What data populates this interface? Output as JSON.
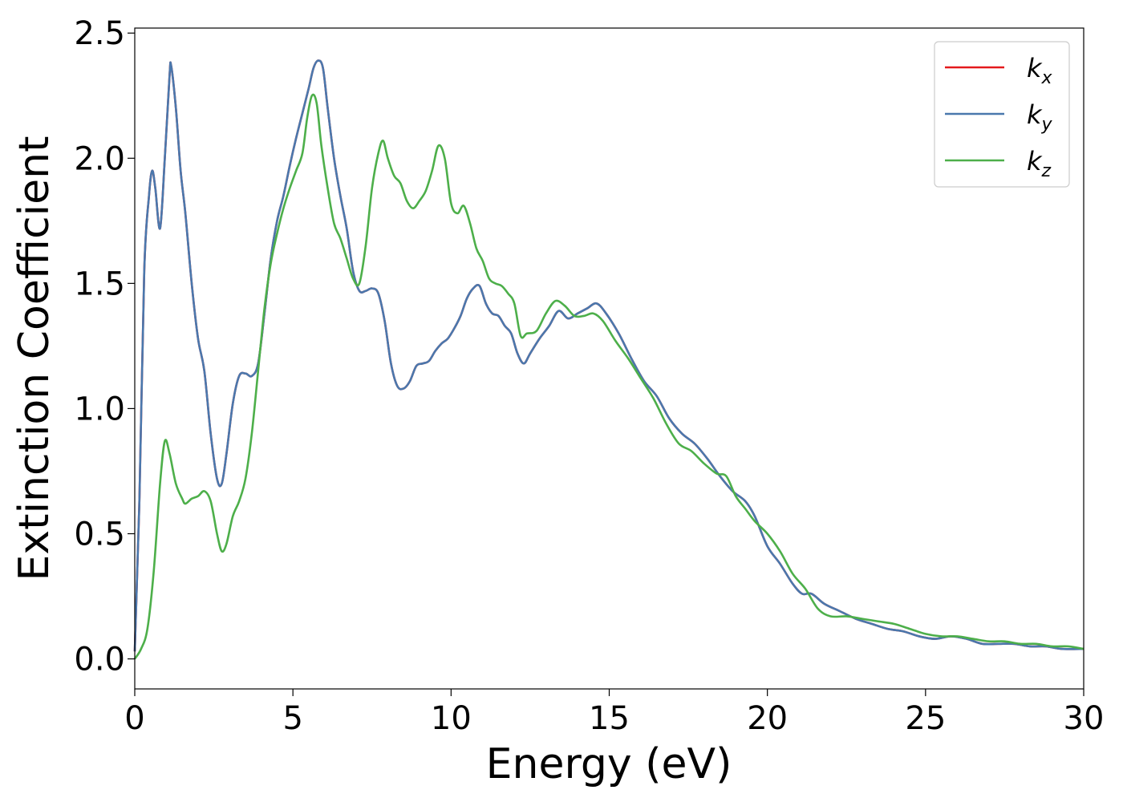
{
  "chart_data": {
    "type": "line",
    "title": "",
    "xlabel": "Energy (eV)",
    "ylabel": "Extinction Coefficient",
    "xlim": [
      0,
      30
    ],
    "ylim": [
      -0.12,
      2.52
    ],
    "xticks": [
      0,
      5,
      10,
      15,
      20,
      25,
      30
    ],
    "yticks": [
      0.0,
      0.5,
      1.0,
      1.5,
      2.0,
      2.5
    ],
    "xtick_labels": [
      "0",
      "5",
      "10",
      "15",
      "20",
      "25",
      "30"
    ],
    "ytick_labels": [
      "0.0",
      "0.5",
      "1.0",
      "1.5",
      "2.0",
      "2.5"
    ],
    "grid": false,
    "legend_position": "top-right",
    "series": [
      {
        "name": "k_x",
        "color": "#e41a1c",
        "x": [
          0.0,
          0.15,
          0.3,
          0.45,
          0.55,
          0.65,
          0.8,
          0.95,
          1.1,
          1.15,
          1.3,
          1.45,
          1.6,
          1.8,
          2.0,
          2.2,
          2.4,
          2.6,
          2.75,
          2.9,
          3.1,
          3.3,
          3.5,
          3.7,
          3.9,
          4.1,
          4.3,
          4.5,
          4.7,
          4.9,
          5.1,
          5.3,
          5.5,
          5.65,
          5.8,
          5.95,
          6.1,
          6.3,
          6.5,
          6.7,
          6.9,
          7.1,
          7.3,
          7.5,
          7.7,
          7.9,
          8.1,
          8.3,
          8.5,
          8.7,
          8.9,
          9.1,
          9.3,
          9.5,
          9.7,
          9.9,
          10.1,
          10.3,
          10.5,
          10.7,
          10.9,
          11.1,
          11.3,
          11.5,
          11.7,
          11.9,
          12.1,
          12.3,
          12.5,
          12.8,
          13.1,
          13.4,
          13.7,
          14.0,
          14.3,
          14.6,
          14.9,
          15.3,
          15.7,
          16.1,
          16.5,
          16.9,
          17.3,
          17.7,
          18.1,
          18.5,
          18.9,
          19.3,
          19.6,
          20.0,
          20.4,
          20.8,
          21.1,
          21.4,
          21.8,
          22.3,
          22.8,
          23.3,
          23.8,
          24.3,
          24.8,
          25.3,
          25.8,
          26.3,
          26.8,
          27.3,
          27.8,
          28.3,
          28.8,
          29.3,
          30.0
        ],
        "y": [
          0.03,
          0.65,
          1.55,
          1.85,
          1.95,
          1.88,
          1.72,
          2.0,
          2.33,
          2.37,
          2.2,
          1.95,
          1.78,
          1.5,
          1.28,
          1.15,
          0.9,
          0.72,
          0.7,
          0.82,
          1.02,
          1.13,
          1.14,
          1.13,
          1.18,
          1.38,
          1.6,
          1.75,
          1.85,
          1.97,
          2.08,
          2.18,
          2.28,
          2.36,
          2.39,
          2.36,
          2.2,
          2.0,
          1.85,
          1.72,
          1.55,
          1.47,
          1.47,
          1.48,
          1.46,
          1.35,
          1.18,
          1.09,
          1.08,
          1.11,
          1.17,
          1.18,
          1.19,
          1.23,
          1.26,
          1.28,
          1.32,
          1.37,
          1.44,
          1.48,
          1.49,
          1.42,
          1.38,
          1.37,
          1.33,
          1.3,
          1.22,
          1.18,
          1.22,
          1.28,
          1.33,
          1.39,
          1.36,
          1.38,
          1.4,
          1.42,
          1.38,
          1.3,
          1.2,
          1.11,
          1.05,
          0.96,
          0.9,
          0.86,
          0.8,
          0.73,
          0.67,
          0.63,
          0.57,
          0.45,
          0.38,
          0.3,
          0.26,
          0.26,
          0.22,
          0.19,
          0.16,
          0.14,
          0.12,
          0.11,
          0.09,
          0.08,
          0.09,
          0.08,
          0.06,
          0.06,
          0.06,
          0.05,
          0.05,
          0.04,
          0.04
        ]
      },
      {
        "name": "k_y",
        "color": "#4a78ad",
        "x": [
          0.0,
          0.15,
          0.3,
          0.45,
          0.55,
          0.65,
          0.8,
          0.95,
          1.1,
          1.15,
          1.3,
          1.45,
          1.6,
          1.8,
          2.0,
          2.2,
          2.4,
          2.6,
          2.75,
          2.9,
          3.1,
          3.3,
          3.5,
          3.7,
          3.9,
          4.1,
          4.3,
          4.5,
          4.7,
          4.9,
          5.1,
          5.3,
          5.5,
          5.65,
          5.8,
          5.95,
          6.1,
          6.3,
          6.5,
          6.7,
          6.9,
          7.1,
          7.3,
          7.5,
          7.7,
          7.9,
          8.1,
          8.3,
          8.5,
          8.7,
          8.9,
          9.1,
          9.3,
          9.5,
          9.7,
          9.9,
          10.1,
          10.3,
          10.5,
          10.7,
          10.9,
          11.1,
          11.3,
          11.5,
          11.7,
          11.9,
          12.1,
          12.3,
          12.5,
          12.8,
          13.1,
          13.4,
          13.7,
          14.0,
          14.3,
          14.6,
          14.9,
          15.3,
          15.7,
          16.1,
          16.5,
          16.9,
          17.3,
          17.7,
          18.1,
          18.5,
          18.9,
          19.3,
          19.6,
          20.0,
          20.4,
          20.8,
          21.1,
          21.4,
          21.8,
          22.3,
          22.8,
          23.3,
          23.8,
          24.3,
          24.8,
          25.3,
          25.8,
          26.3,
          26.8,
          27.3,
          27.8,
          28.3,
          28.8,
          29.3,
          30.0
        ],
        "y": [
          0.03,
          0.65,
          1.55,
          1.85,
          1.95,
          1.88,
          1.72,
          2.0,
          2.33,
          2.37,
          2.2,
          1.95,
          1.78,
          1.5,
          1.28,
          1.15,
          0.9,
          0.72,
          0.7,
          0.82,
          1.02,
          1.13,
          1.14,
          1.13,
          1.18,
          1.38,
          1.6,
          1.75,
          1.85,
          1.97,
          2.08,
          2.18,
          2.28,
          2.36,
          2.39,
          2.36,
          2.2,
          2.0,
          1.85,
          1.72,
          1.55,
          1.47,
          1.47,
          1.48,
          1.46,
          1.35,
          1.18,
          1.09,
          1.08,
          1.11,
          1.17,
          1.18,
          1.19,
          1.23,
          1.26,
          1.28,
          1.32,
          1.37,
          1.44,
          1.48,
          1.49,
          1.42,
          1.38,
          1.37,
          1.33,
          1.3,
          1.22,
          1.18,
          1.22,
          1.28,
          1.33,
          1.39,
          1.36,
          1.38,
          1.4,
          1.42,
          1.38,
          1.3,
          1.2,
          1.11,
          1.05,
          0.96,
          0.9,
          0.86,
          0.8,
          0.73,
          0.67,
          0.63,
          0.57,
          0.45,
          0.38,
          0.3,
          0.26,
          0.26,
          0.22,
          0.19,
          0.16,
          0.14,
          0.12,
          0.11,
          0.09,
          0.08,
          0.09,
          0.08,
          0.06,
          0.06,
          0.06,
          0.05,
          0.05,
          0.04,
          0.04
        ]
      },
      {
        "name": "k_z",
        "color": "#4daf4a",
        "x": [
          0.0,
          0.2,
          0.4,
          0.6,
          0.8,
          0.95,
          1.1,
          1.3,
          1.5,
          1.6,
          1.8,
          2.0,
          2.2,
          2.4,
          2.6,
          2.75,
          2.9,
          3.1,
          3.3,
          3.5,
          3.7,
          3.9,
          4.1,
          4.3,
          4.5,
          4.7,
          4.9,
          5.1,
          5.3,
          5.45,
          5.6,
          5.75,
          5.9,
          6.1,
          6.3,
          6.5,
          6.7,
          6.9,
          7.1,
          7.3,
          7.5,
          7.7,
          7.85,
          8.0,
          8.2,
          8.4,
          8.6,
          8.8,
          9.0,
          9.2,
          9.4,
          9.6,
          9.8,
          10.0,
          10.2,
          10.4,
          10.6,
          10.8,
          11.0,
          11.2,
          11.4,
          11.6,
          11.8,
          12.0,
          12.2,
          12.4,
          12.7,
          13.0,
          13.3,
          13.6,
          13.9,
          14.2,
          14.5,
          14.8,
          15.2,
          15.6,
          16.0,
          16.4,
          16.8,
          17.2,
          17.6,
          18.0,
          18.4,
          18.7,
          19.0,
          19.3,
          19.6,
          20.0,
          20.4,
          20.8,
          21.2,
          21.6,
          22.0,
          22.5,
          23.0,
          23.5,
          24.0,
          24.5,
          25.0,
          25.5,
          26.0,
          26.5,
          27.0,
          27.5,
          28.0,
          28.5,
          29.0,
          29.5,
          30.0
        ],
        "y": [
          0.0,
          0.04,
          0.12,
          0.35,
          0.7,
          0.87,
          0.82,
          0.7,
          0.64,
          0.62,
          0.64,
          0.65,
          0.67,
          0.63,
          0.5,
          0.43,
          0.46,
          0.57,
          0.63,
          0.72,
          0.9,
          1.15,
          1.4,
          1.58,
          1.7,
          1.8,
          1.88,
          1.95,
          2.02,
          2.16,
          2.25,
          2.22,
          2.05,
          1.88,
          1.74,
          1.68,
          1.6,
          1.52,
          1.5,
          1.65,
          1.88,
          2.02,
          2.07,
          2.0,
          1.93,
          1.9,
          1.83,
          1.8,
          1.83,
          1.87,
          1.95,
          2.05,
          2.0,
          1.82,
          1.78,
          1.81,
          1.74,
          1.64,
          1.59,
          1.52,
          1.5,
          1.49,
          1.46,
          1.42,
          1.29,
          1.3,
          1.31,
          1.38,
          1.43,
          1.41,
          1.37,
          1.37,
          1.38,
          1.35,
          1.27,
          1.2,
          1.12,
          1.04,
          0.94,
          0.86,
          0.83,
          0.78,
          0.74,
          0.73,
          0.65,
          0.6,
          0.55,
          0.5,
          0.43,
          0.34,
          0.28,
          0.2,
          0.17,
          0.17,
          0.16,
          0.15,
          0.14,
          0.12,
          0.1,
          0.09,
          0.09,
          0.08,
          0.07,
          0.07,
          0.06,
          0.06,
          0.05,
          0.05,
          0.04
        ]
      }
    ]
  },
  "legend": {
    "entries": [
      {
        "base": "k",
        "sub": "x",
        "color": "#e41a1c"
      },
      {
        "base": "k",
        "sub": "y",
        "color": "#4a78ad"
      },
      {
        "base": "k",
        "sub": "z",
        "color": "#4daf4a"
      }
    ]
  }
}
